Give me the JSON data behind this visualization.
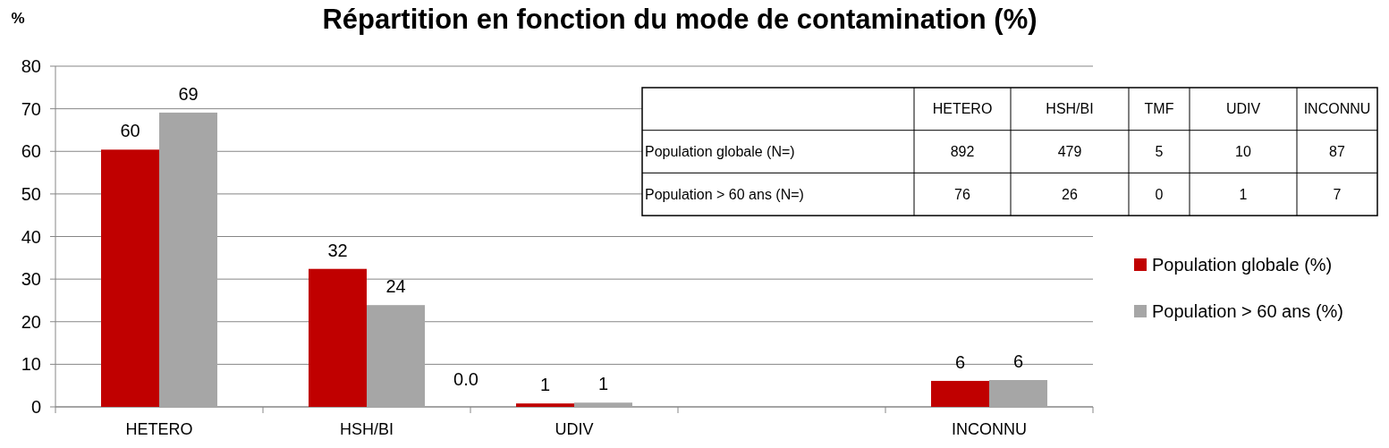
{
  "chart_data": [
    {
      "type": "bar",
      "title": "Répartition en fonction du mode de contamination (%)",
      "ylabel": "%",
      "categories": [
        "HETERO",
        "HSH/BI",
        "UDIV",
        null,
        "INCONNU"
      ],
      "series": [
        {
          "name": "Population globale (%)",
          "color": "#c00000",
          "values": [
            60.4,
            32.4,
            0.8,
            null,
            6.1
          ],
          "value_labels": [
            "60",
            "32",
            "1",
            null,
            "6"
          ]
        },
        {
          "name": "Population > 60 ans (%)",
          "color": "#a6a6a6",
          "values": [
            69.1,
            23.9,
            1.0,
            null,
            6.3
          ],
          "value_labels": [
            "69",
            "24",
            "1",
            null,
            "6"
          ]
        }
      ],
      "ylim": [
        0,
        80
      ],
      "yticks": [
        0,
        10,
        20,
        30,
        40,
        50,
        60,
        70,
        80
      ],
      "grid": "y",
      "legend": "right",
      "annotations": [
        "0.0"
      ]
    },
    {
      "type": "other",
      "categories": [
        "HETERO",
        "HSH/BI",
        "TMF",
        "UDIV",
        "INCONNU"
      ],
      "y_categories": [
        "Population globale (N=)",
        "Population > 60 ans (N=)"
      ],
      "cells": [
        [
          "892",
          "479",
          "5",
          "10",
          "87"
        ],
        [
          "76",
          "26",
          "0",
          "1",
          "7"
        ]
      ]
    }
  ]
}
